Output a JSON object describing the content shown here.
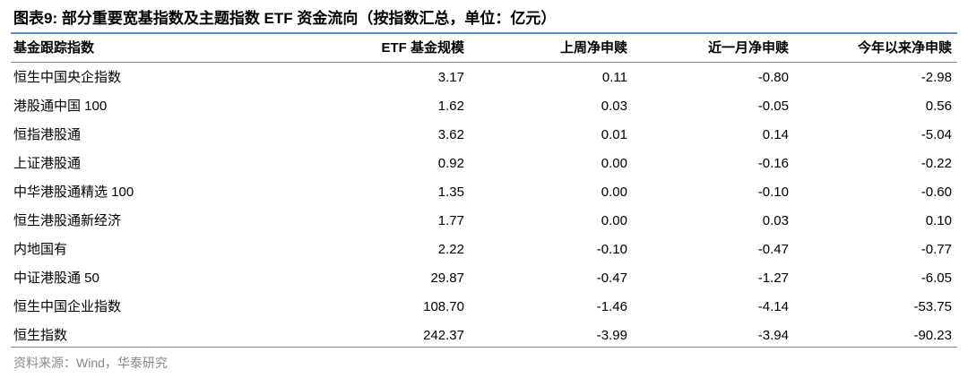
{
  "title": "图表9:  部分重要宽基指数及主题指数 ETF 资金流向（按指数汇总，单位：亿元）",
  "table": {
    "header": [
      "基金跟踪指数",
      "ETF 基金规模",
      "上周净申赎",
      "近一月净申赎",
      "今年以来净申赎"
    ],
    "rows": [
      [
        "恒生中国央企指数",
        "3.17",
        "0.11",
        "-0.80",
        "-2.98"
      ],
      [
        "港股通中国 100",
        "1.62",
        "0.03",
        "-0.05",
        "0.56"
      ],
      [
        "恒指港股通",
        "3.62",
        "0.01",
        "0.14",
        "-5.04"
      ],
      [
        "上证港股通",
        "0.92",
        "0.00",
        "-0.16",
        "-0.22"
      ],
      [
        "中华港股通精选 100",
        "1.35",
        "0.00",
        "-0.10",
        "-0.60"
      ],
      [
        "恒生港股通新经济",
        "1.77",
        "0.00",
        "0.03",
        "0.10"
      ],
      [
        "内地国有",
        "2.22",
        "-0.10",
        "-0.47",
        "-0.77"
      ],
      [
        "中证港股通 50",
        "29.87",
        "-0.47",
        "-1.27",
        "-6.05"
      ],
      [
        "恒生中国企业指数",
        "108.70",
        "-1.46",
        "-4.14",
        "-53.75"
      ],
      [
        "恒生指数",
        "242.37",
        "-3.99",
        "-3.94",
        "-90.23"
      ]
    ]
  },
  "source": "资料来源：Wind，华泰研究"
}
